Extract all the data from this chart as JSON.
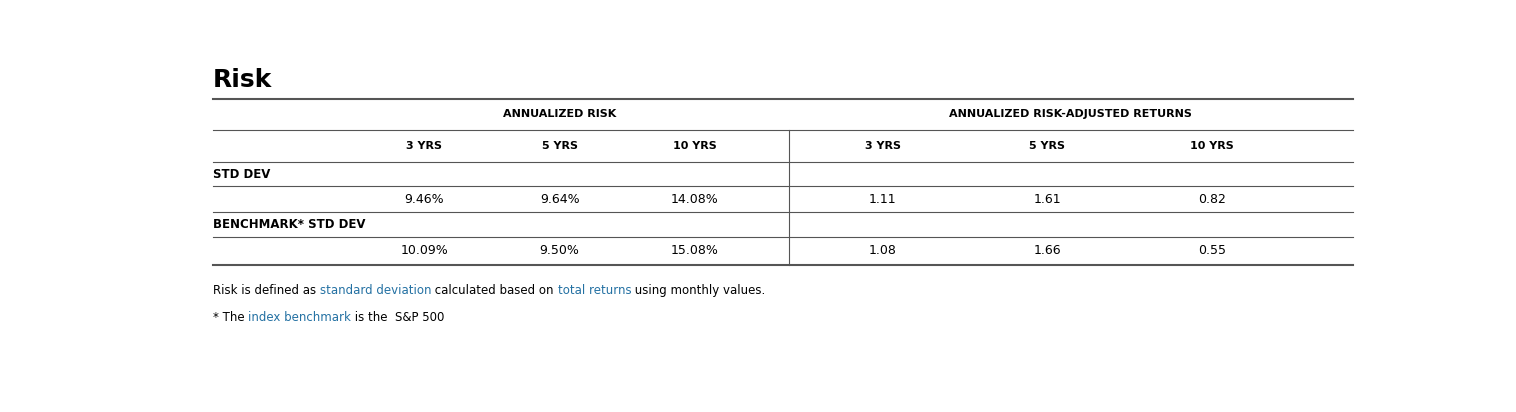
{
  "title": "Risk",
  "title_fontsize": 18,
  "title_fontweight": "bold",
  "bg_color": "#ffffff",
  "group_header_1": "ANNUALIZED RISK",
  "group_header_2": "ANNUALIZED RISK-ADJUSTED RETURNS",
  "col_headers": [
    "3 YRS",
    "5 YRS",
    "10 YRS",
    "3 YRS",
    "5 YRS",
    "10 YRS"
  ],
  "row1_label": "STD DEV",
  "row1_values": [
    "9.46%",
    "9.64%",
    "14.08%",
    "1.11",
    "1.61",
    "0.82"
  ],
  "row2_label": "BENCHMARK* STD DEV",
  "row2_values": [
    "10.09%",
    "9.50%",
    "15.08%",
    "1.08",
    "1.66",
    "0.55"
  ],
  "text_color": "#000000",
  "blue_color": "#2471a3",
  "header_color": "#000000",
  "line_color": "#555555",
  "label_fontsize": 8.5,
  "data_fontsize": 9,
  "header_fontsize": 8,
  "footnote_fontsize": 8.5
}
